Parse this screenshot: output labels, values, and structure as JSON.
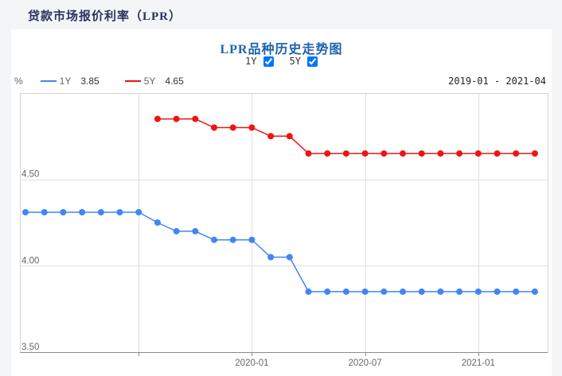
{
  "page": {
    "title": "贷款市场报价利率（LPR）"
  },
  "chart": {
    "title": "LPR品种历史走势图",
    "toggles": [
      {
        "label": "1Y",
        "checked": true
      },
      {
        "label": "5Y",
        "checked": true
      }
    ],
    "unit": "%",
    "legend": [
      {
        "label": "1Y",
        "value": "3.85",
        "color": "#4285f4"
      },
      {
        "label": "5Y",
        "value": "4.65",
        "color": "#ee1414"
      }
    ],
    "date_range": "2019-01 - 2021-04"
  },
  "chart_data": {
    "type": "line",
    "title": "LPR品种历史走势图",
    "x": [
      "2019-01",
      "2019-02",
      "2019-03",
      "2019-04",
      "2019-05",
      "2019-06",
      "2019-07",
      "2019-08",
      "2019-09",
      "2019-10",
      "2019-11",
      "2019-12",
      "2020-01",
      "2020-02",
      "2020-03",
      "2020-04",
      "2020-05",
      "2020-06",
      "2020-07",
      "2020-08",
      "2020-09",
      "2020-10",
      "2020-11",
      "2020-12",
      "2021-01",
      "2021-02",
      "2021-03",
      "2021-04"
    ],
    "series": [
      {
        "name": "1Y",
        "color": "#4285f4",
        "values": [
          4.31,
          4.31,
          4.31,
          4.31,
          4.31,
          4.31,
          4.31,
          4.25,
          4.2,
          4.2,
          4.15,
          4.15,
          4.15,
          4.05,
          4.05,
          3.85,
          3.85,
          3.85,
          3.85,
          3.85,
          3.85,
          3.85,
          3.85,
          3.85,
          3.85,
          3.85,
          3.85,
          3.85
        ]
      },
      {
        "name": "5Y",
        "color": "#ee1414",
        "values": [
          null,
          null,
          null,
          null,
          null,
          null,
          null,
          4.85,
          4.85,
          4.85,
          4.8,
          4.8,
          4.8,
          4.75,
          4.75,
          4.65,
          4.65,
          4.65,
          4.65,
          4.65,
          4.65,
          4.65,
          4.65,
          4.65,
          4.65,
          4.65,
          4.65,
          4.65
        ]
      }
    ],
    "ylim": [
      3.5,
      5.0
    ],
    "ylabel": "%",
    "xlabel": "",
    "y_ticks": [
      "4.50",
      "4.00",
      "3.50"
    ],
    "x_gridlines": [
      "2019-07",
      "2020-01",
      "2020-07",
      "2021-01"
    ],
    "x_tick_labels": [
      "2020-01",
      "2020-07",
      "2021-01"
    ],
    "grid": true,
    "legend_position": "top-left"
  }
}
